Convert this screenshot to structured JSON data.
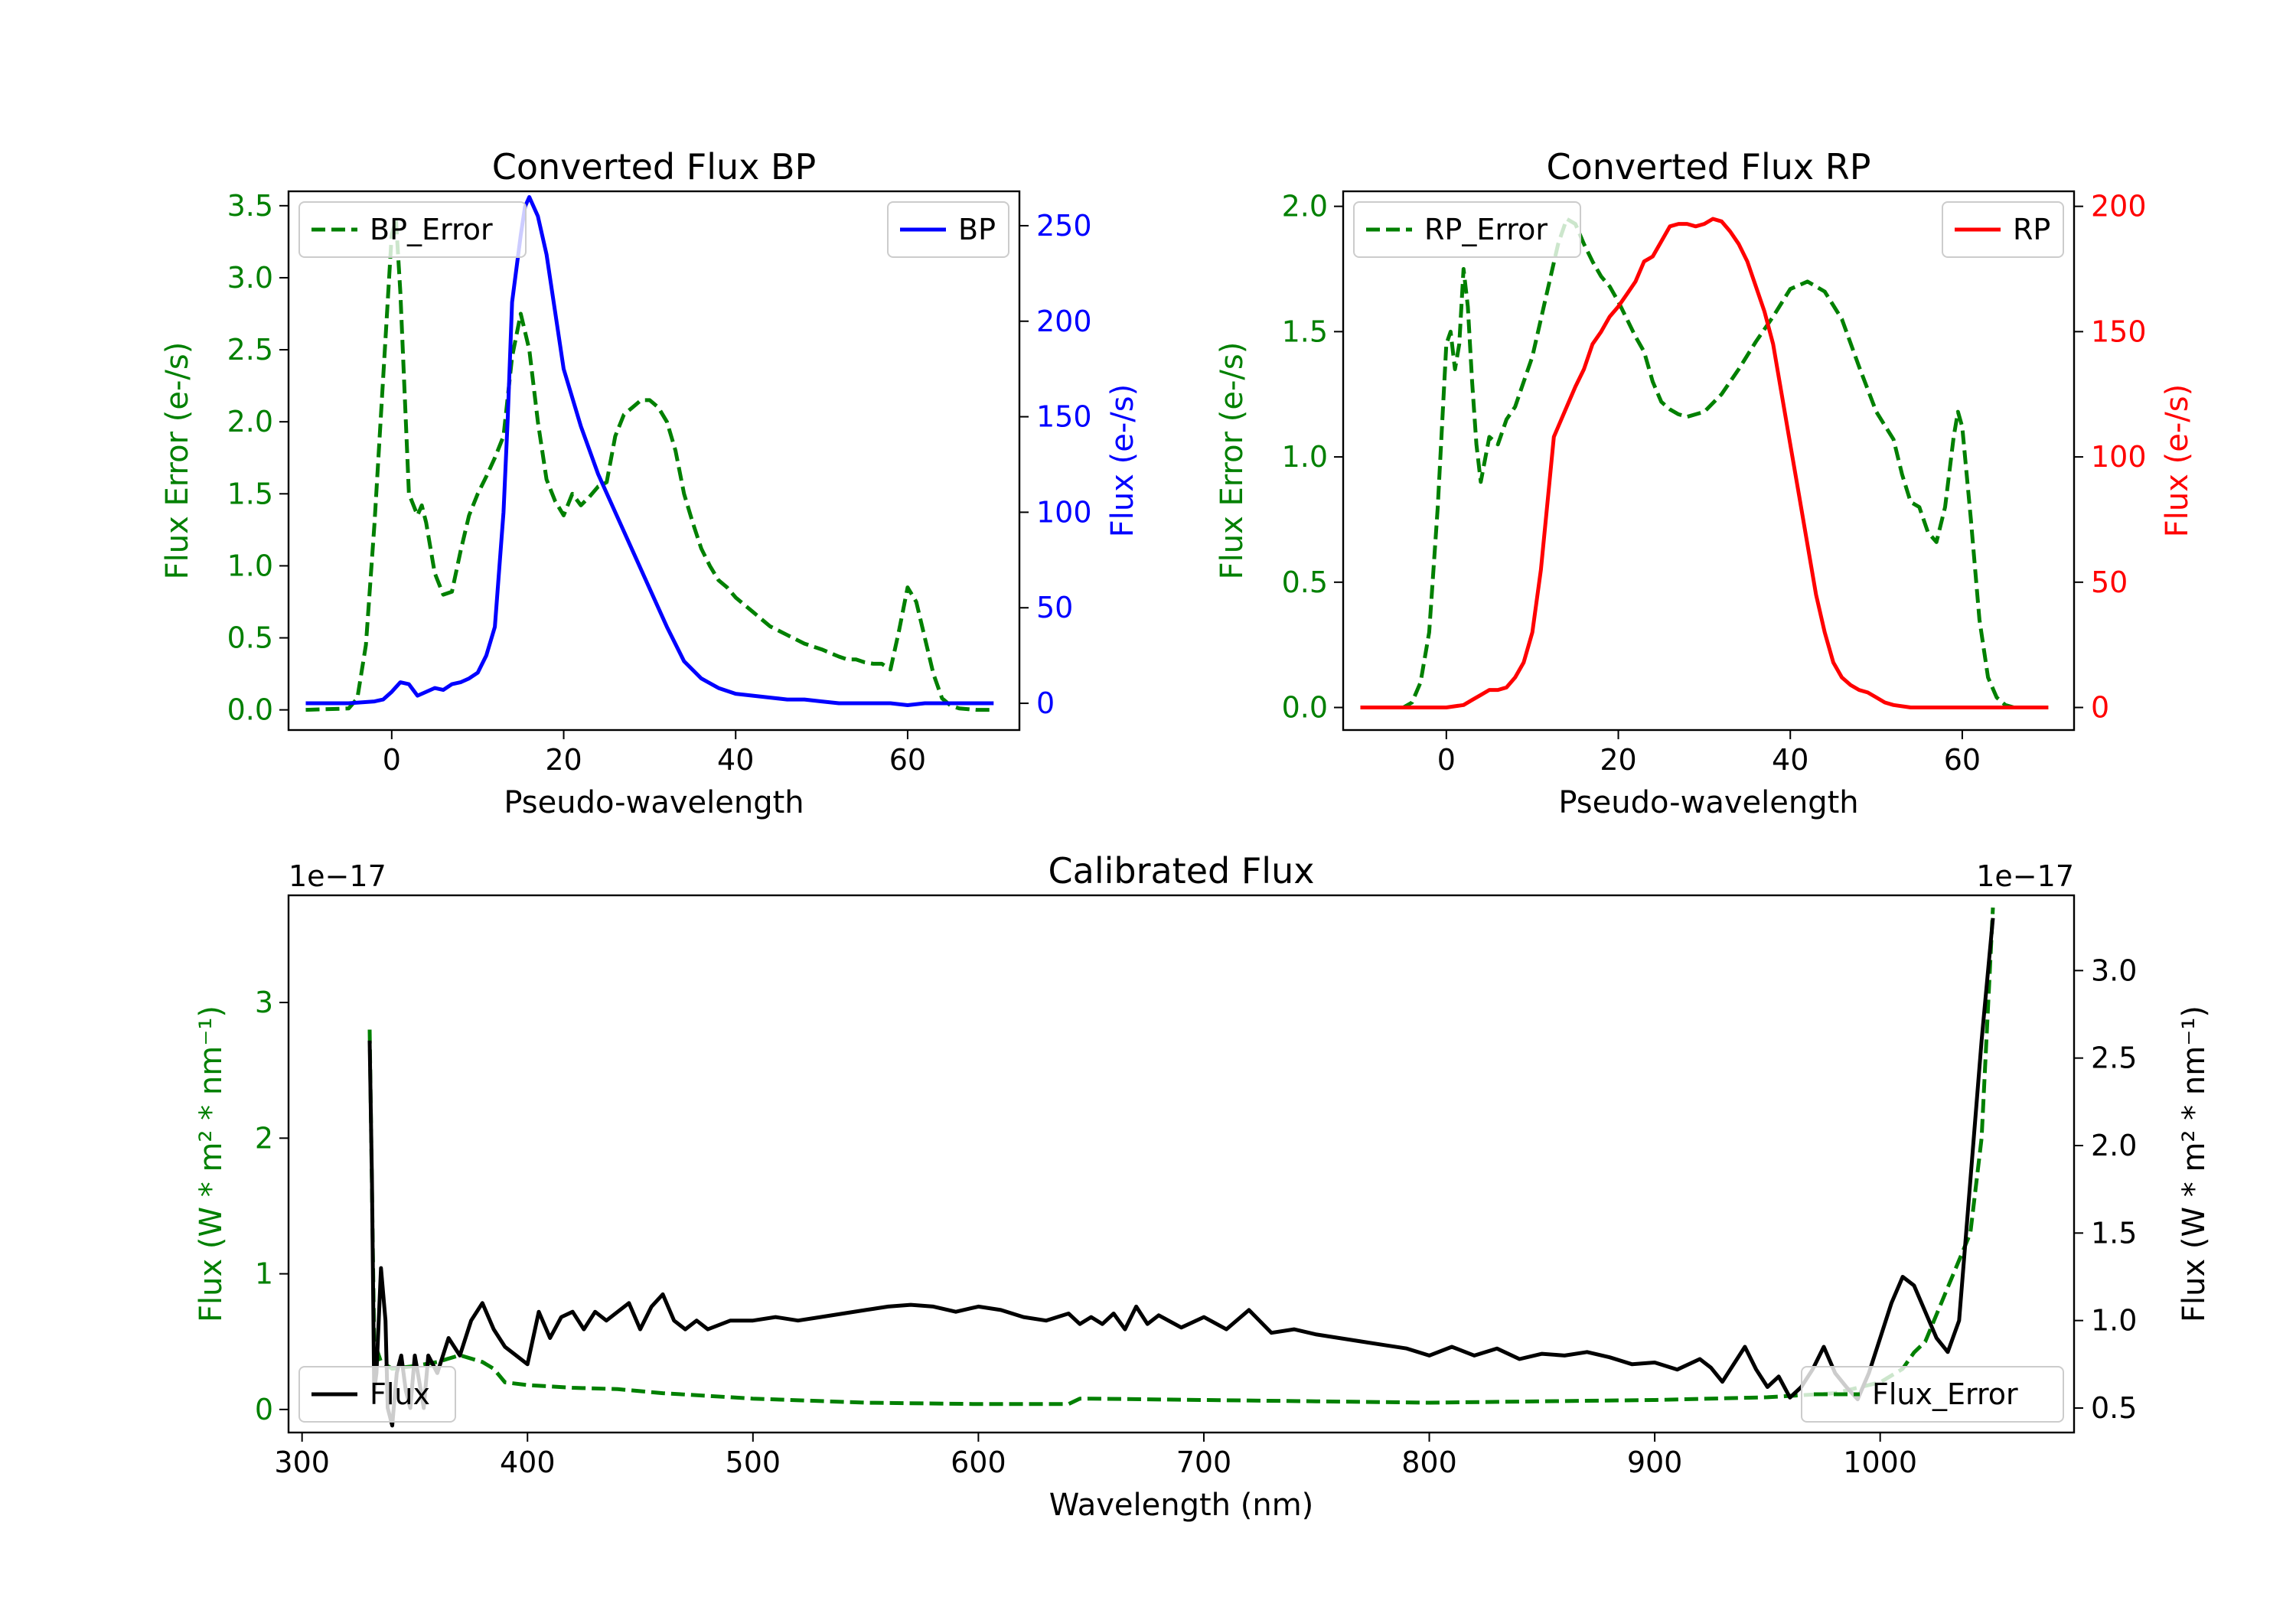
{
  "chart_data": [
    {
      "type": "line",
      "title": "Converted Flux BP",
      "xlabel": "Pseudo-wavelength",
      "xlim": [
        -12,
        73
      ],
      "xticks": [
        0,
        20,
        40,
        60
      ],
      "y_left": {
        "label": "Flux Error (e-/s)",
        "color": "#008000",
        "lim": [
          -0.14,
          3.6
        ],
        "ticks": [
          "0.0",
          "0.5",
          "1.0",
          "1.5",
          "2.0",
          "2.5",
          "3.0",
          "3.5"
        ]
      },
      "y_right": {
        "label": "Flux (e-/s)",
        "color": "#0000ff",
        "lim": [
          -14,
          268
        ],
        "ticks": [
          "0",
          "50",
          "100",
          "150",
          "200",
          "250"
        ]
      },
      "legend_left": "BP_Error",
      "legend_right": "BP",
      "series": [
        {
          "name": "BP_Error",
          "axis": "left",
          "color": "#008000",
          "style": "dashed",
          "x": [
            -10,
            -5,
            -4,
            -3,
            -2,
            -1,
            0,
            0.5,
            1,
            2,
            3,
            3.5,
            4,
            5,
            6,
            7,
            8,
            9,
            10,
            11,
            12,
            13,
            14,
            15,
            16,
            17,
            18,
            19,
            20,
            21,
            22,
            23,
            24,
            25,
            26,
            27,
            28,
            29,
            30,
            31,
            32,
            33,
            34,
            35,
            36,
            37,
            38,
            39,
            40,
            42,
            44,
            46,
            48,
            50,
            52,
            53,
            54,
            55,
            56,
            57,
            58,
            59,
            60,
            61,
            62,
            63,
            64,
            65,
            66,
            68,
            70
          ],
          "y": [
            0,
            0.01,
            0.08,
            0.45,
            1.3,
            2.3,
            3.3,
            3.4,
            2.9,
            1.5,
            1.35,
            1.42,
            1.3,
            0.95,
            0.8,
            0.82,
            1.1,
            1.35,
            1.5,
            1.62,
            1.75,
            1.9,
            2.45,
            2.75,
            2.5,
            2.0,
            1.6,
            1.45,
            1.35,
            1.5,
            1.42,
            1.48,
            1.55,
            1.58,
            1.9,
            2.05,
            2.1,
            2.15,
            2.15,
            2.1,
            2.0,
            1.8,
            1.5,
            1.3,
            1.12,
            1.0,
            0.9,
            0.85,
            0.78,
            0.68,
            0.58,
            0.52,
            0.46,
            0.42,
            0.37,
            0.35,
            0.35,
            0.33,
            0.32,
            0.32,
            0.28,
            0.55,
            0.85,
            0.75,
            0.5,
            0.25,
            0.08,
            0.03,
            0.01,
            0,
            0
          ]
        },
        {
          "name": "BP",
          "axis": "right",
          "color": "#0000ff",
          "style": "solid",
          "x": [
            -10,
            -5,
            -2,
            -1,
            0,
            1,
            2,
            3,
            4,
            5,
            6,
            7,
            8,
            9,
            10,
            11,
            12,
            13,
            13.5,
            14,
            15,
            15.5,
            16,
            17,
            18,
            19,
            20,
            22,
            24,
            26,
            28,
            30,
            32,
            34,
            36,
            38,
            40,
            42,
            44,
            46,
            48,
            50,
            52,
            54,
            56,
            58,
            60,
            62,
            64,
            66,
            68,
            70
          ],
          "y": [
            0,
            0,
            1,
            2,
            6,
            11,
            10,
            4,
            6,
            8,
            7,
            10,
            11,
            13,
            16,
            25,
            40,
            100,
            150,
            210,
            245,
            260,
            265,
            255,
            235,
            205,
            175,
            145,
            120,
            100,
            80,
            60,
            40,
            22,
            13,
            8,
            5,
            4,
            3,
            2,
            2,
            1,
            0,
            0,
            0,
            0,
            -1,
            0,
            0,
            0,
            0,
            0
          ]
        }
      ]
    },
    {
      "type": "line",
      "title": "Converted Flux RP",
      "xlabel": "Pseudo-wavelength",
      "xlim": [
        -12,
        73
      ],
      "xticks": [
        0,
        20,
        40,
        60
      ],
      "y_left": {
        "label": "Flux Error (e-/s)",
        "color": "#008000",
        "lim": [
          -0.09,
          2.06
        ],
        "ticks": [
          "0.0",
          "0.5",
          "1.0",
          "1.5",
          "2.0"
        ]
      },
      "y_right": {
        "label": "Flux (e-/s)",
        "color": "#ff0000",
        "lim": [
          -9,
          206
        ],
        "ticks": [
          "0",
          "50",
          "100",
          "150",
          "200"
        ]
      },
      "legend_left": "RP_Error",
      "legend_right": "RP",
      "series": [
        {
          "name": "RP_Error",
          "axis": "left",
          "color": "#008000",
          "style": "dashed",
          "x": [
            -10,
            -5,
            -4,
            -3,
            -2,
            -1,
            0,
            0.5,
            1,
            1.5,
            2,
            2.5,
            3,
            3.5,
            4,
            5,
            6,
            7,
            8,
            9,
            10,
            11,
            12,
            13,
            14,
            15,
            16,
            17,
            18,
            19,
            20,
            21,
            22,
            23,
            24,
            25,
            26,
            27,
            28,
            30,
            32,
            34,
            36,
            38,
            40,
            42,
            44,
            46,
            48,
            50,
            52,
            53,
            54,
            55,
            56,
            57,
            58,
            59,
            59.5,
            60,
            61,
            62,
            63,
            64,
            65,
            66,
            70
          ],
          "y": [
            0,
            0,
            0.02,
            0.1,
            0.3,
            0.8,
            1.45,
            1.5,
            1.35,
            1.45,
            1.75,
            1.6,
            1.3,
            1.05,
            0.9,
            1.08,
            1.05,
            1.15,
            1.2,
            1.3,
            1.4,
            1.55,
            1.7,
            1.85,
            1.95,
            1.93,
            1.85,
            1.78,
            1.72,
            1.68,
            1.62,
            1.55,
            1.48,
            1.42,
            1.3,
            1.22,
            1.19,
            1.17,
            1.16,
            1.18,
            1.25,
            1.35,
            1.46,
            1.56,
            1.67,
            1.7,
            1.66,
            1.55,
            1.36,
            1.18,
            1.07,
            0.93,
            0.82,
            0.8,
            0.7,
            0.66,
            0.8,
            1.08,
            1.18,
            1.12,
            0.75,
            0.35,
            0.12,
            0.04,
            0.01,
            0,
            0
          ]
        },
        {
          "name": "RP",
          "axis": "right",
          "color": "#ff0000",
          "style": "solid",
          "x": [
            -10,
            -5,
            -2,
            0,
            2,
            3,
            4,
            5,
            6,
            7,
            8,
            9,
            10,
            11,
            12,
            12.5,
            13,
            14,
            15,
            16,
            17,
            18,
            19,
            20,
            21,
            22,
            23,
            24,
            25,
            26,
            27,
            28,
            29,
            30,
            31,
            32,
            33,
            34,
            35,
            36,
            37,
            38,
            39,
            40,
            41,
            42,
            43,
            44,
            45,
            46,
            47,
            48,
            49,
            50,
            51,
            52,
            54,
            56,
            58,
            60,
            62,
            64,
            66,
            70
          ],
          "y": [
            0,
            0,
            0,
            0,
            1,
            3,
            5,
            7,
            7,
            8,
            12,
            18,
            30,
            55,
            90,
            108,
            112,
            120,
            128,
            135,
            145,
            150,
            156,
            160,
            165,
            170,
            178,
            180,
            186,
            192,
            193,
            193,
            192,
            193,
            195,
            194,
            190,
            185,
            178,
            168,
            158,
            145,
            125,
            105,
            85,
            65,
            45,
            30,
            18,
            12,
            9,
            7,
            6,
            4,
            2,
            1,
            0,
            0,
            0,
            0,
            0,
            0,
            0,
            0
          ]
        }
      ]
    },
    {
      "type": "line",
      "title": "Calibrated Flux",
      "xlabel": "Wavelength (nm)",
      "xlim": [
        294,
        1086
      ],
      "xticks": [
        300,
        400,
        500,
        600,
        700,
        800,
        900,
        1000
      ],
      "offset_left": "1e−17",
      "offset_right": "1e−17",
      "y_left": {
        "label": "Flux (W * m² * nm⁻¹)",
        "color": "#008000",
        "lim": [
          -0.17,
          3.79
        ],
        "ticks": [
          "0",
          "1",
          "2",
          "3"
        ]
      },
      "y_right": {
        "label": "Flux (W * m² * nm⁻¹)",
        "color": "#000000",
        "lim": [
          0.36,
          3.43
        ],
        "ticks": [
          "0.5",
          "1.0",
          "1.5",
          "2.0",
          "2.5",
          "3.0"
        ]
      },
      "legend_left": "Flux",
      "legend_right": "Flux_Error",
      "series": [
        {
          "name": "Flux_Error",
          "axis": "left",
          "color": "#008000",
          "style": "dashed",
          "x": [
            330,
            332,
            335,
            340,
            350,
            360,
            370,
            380,
            385,
            390,
            400,
            420,
            440,
            460,
            480,
            500,
            550,
            600,
            640,
            645,
            650,
            700,
            750,
            800,
            850,
            900,
            950,
            980,
            1000,
            1010,
            1015,
            1020,
            1025,
            1030,
            1035,
            1040,
            1045,
            1050
          ],
          "y": [
            2.8,
            0.5,
            0.35,
            0.3,
            0.32,
            0.35,
            0.4,
            0.35,
            0.3,
            0.2,
            0.18,
            0.16,
            0.15,
            0.12,
            0.1,
            0.08,
            0.05,
            0.04,
            0.04,
            0.08,
            0.08,
            0.07,
            0.06,
            0.05,
            0.06,
            0.07,
            0.09,
            0.12,
            0.2,
            0.3,
            0.42,
            0.5,
            0.7,
            0.9,
            1.1,
            1.3,
            2.0,
            3.7
          ]
        },
        {
          "name": "Flux",
          "axis": "right",
          "color": "#000000",
          "style": "solid",
          "x": [
            330,
            331,
            332,
            333,
            335,
            337,
            338,
            340,
            342,
            344,
            346,
            348,
            350,
            352,
            354,
            356,
            360,
            365,
            370,
            375,
            380,
            385,
            390,
            395,
            400,
            405,
            410,
            415,
            420,
            425,
            430,
            435,
            440,
            445,
            450,
            455,
            460,
            465,
            470,
            475,
            480,
            490,
            500,
            510,
            520,
            530,
            540,
            550,
            560,
            570,
            580,
            590,
            600,
            610,
            620,
            630,
            640,
            645,
            650,
            655,
            660,
            665,
            670,
            675,
            680,
            690,
            700,
            710,
            720,
            730,
            740,
            750,
            760,
            770,
            780,
            790,
            800,
            810,
            820,
            830,
            840,
            850,
            860,
            870,
            880,
            890,
            900,
            910,
            920,
            925,
            930,
            940,
            945,
            950,
            955,
            960,
            965,
            970,
            975,
            980,
            985,
            990,
            995,
            1000,
            1005,
            1010,
            1015,
            1020,
            1025,
            1030,
            1035,
            1040,
            1045,
            1050
          ],
          "y": [
            2.6,
            1.8,
            0.6,
            0.7,
            1.3,
            1.0,
            0.5,
            0.4,
            0.7,
            0.8,
            0.6,
            0.5,
            0.8,
            0.65,
            0.5,
            0.8,
            0.7,
            0.9,
            0.8,
            1.0,
            1.1,
            0.95,
            0.85,
            0.8,
            0.75,
            1.05,
            0.9,
            1.02,
            1.05,
            0.95,
            1.05,
            1.0,
            1.05,
            1.1,
            0.95,
            1.08,
            1.15,
            1.0,
            0.95,
            1.0,
            0.95,
            1.0,
            1.0,
            1.02,
            1.0,
            1.02,
            1.04,
            1.06,
            1.08,
            1.09,
            1.08,
            1.05,
            1.08,
            1.06,
            1.02,
            1.0,
            1.04,
            0.98,
            1.02,
            0.98,
            1.04,
            0.95,
            1.08,
            0.98,
            1.03,
            0.96,
            1.02,
            0.95,
            1.06,
            0.93,
            0.95,
            0.92,
            0.9,
            0.88,
            0.86,
            0.84,
            0.8,
            0.85,
            0.8,
            0.84,
            0.78,
            0.81,
            0.8,
            0.82,
            0.79,
            0.75,
            0.76,
            0.72,
            0.78,
            0.73,
            0.65,
            0.85,
            0.72,
            0.62,
            0.68,
            0.56,
            0.62,
            0.72,
            0.85,
            0.7,
            0.62,
            0.55,
            0.7,
            0.9,
            1.1,
            1.25,
            1.2,
            1.05,
            0.9,
            0.82,
            1.0,
            1.8,
            2.6,
            3.3
          ]
        }
      ]
    }
  ]
}
